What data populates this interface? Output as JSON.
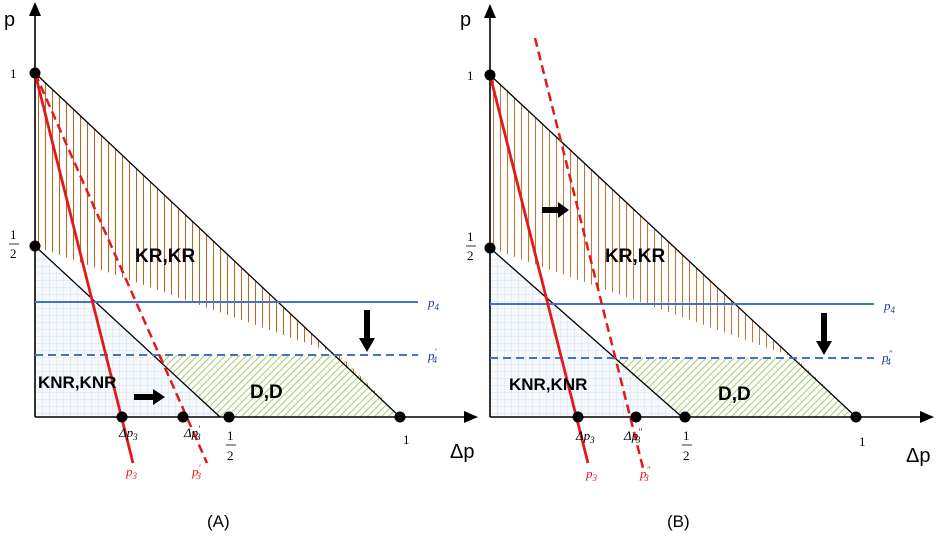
{
  "axes": {
    "y_title": "p",
    "x_title": "Δp",
    "one": "1",
    "half_num": "1",
    "half_den": "2"
  },
  "regions": {
    "kr": "KR,KR",
    "knr": "KNR,KNR",
    "d": "D,D"
  },
  "panelA": {
    "label": "(A)",
    "p3": "p",
    "p3_sub": "3",
    "p3p": "p",
    "p3p_sub": "3",
    "p3p_prime": "′",
    "dp3": "Δp",
    "dp3_sub": "3",
    "dp3p": "Δp",
    "dp3p_sub": "3",
    "dp3p_prime": "′",
    "p4": "p",
    "p4_sub": "4",
    "p4p": "p",
    "p4p_sub": "4",
    "p4p_prime": "′"
  },
  "panelB": {
    "label": "(B)",
    "p3": "p",
    "p3_sub": "3",
    "p3p": "p",
    "p3p_sub": "3",
    "p3p_prime": "″",
    "dp3": "Δp",
    "dp3_sub": "3",
    "dp3p": "Δp",
    "dp3p_sub": "3",
    "dp3p_prime": "″",
    "p4": "p",
    "p4_sub": "4",
    "p4p": "p",
    "p4p_sub": "4",
    "p4p_prime": "″"
  },
  "colors": {
    "red_line": "#e31a1c",
    "blue_line": "#4472c4",
    "orange_hatch": "#c0621a",
    "green_hatch": "#9ccc65",
    "blue_grid": "#9bb7d4"
  }
}
